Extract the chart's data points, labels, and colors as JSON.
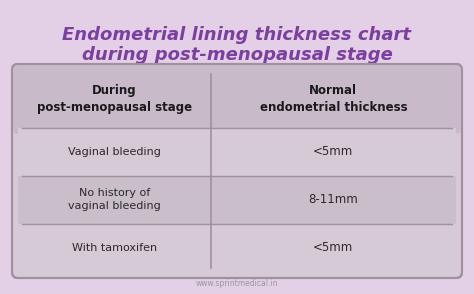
{
  "title_line1": "Endometrial lining thickness chart",
  "title_line2": "during post-menopausal stage",
  "title_color": "#7B3FA0",
  "bg_color": "#E3D0E6",
  "table_bg": "#D6CAD6",
  "header_bg": "#C9BAC9",
  "row_alt1_bg": "#D6CAD6",
  "row_alt2_bg": "#CABECb",
  "col1_header": "During\npost-menopausal stage",
  "col2_header": "Normal\nendometrial thickness",
  "rows": [
    [
      "Vaginal bleeding",
      "<5mm"
    ],
    [
      "No history of\nvaginal bleeding",
      "8-11mm"
    ],
    [
      "With tamoxifen",
      "<5mm"
    ]
  ],
  "footer": "www.sprintmedical.in",
  "table_border_color": "#A090A0",
  "text_dark": "#1A1A1A",
  "text_row": "#2A2A2A",
  "col_split": 0.44
}
